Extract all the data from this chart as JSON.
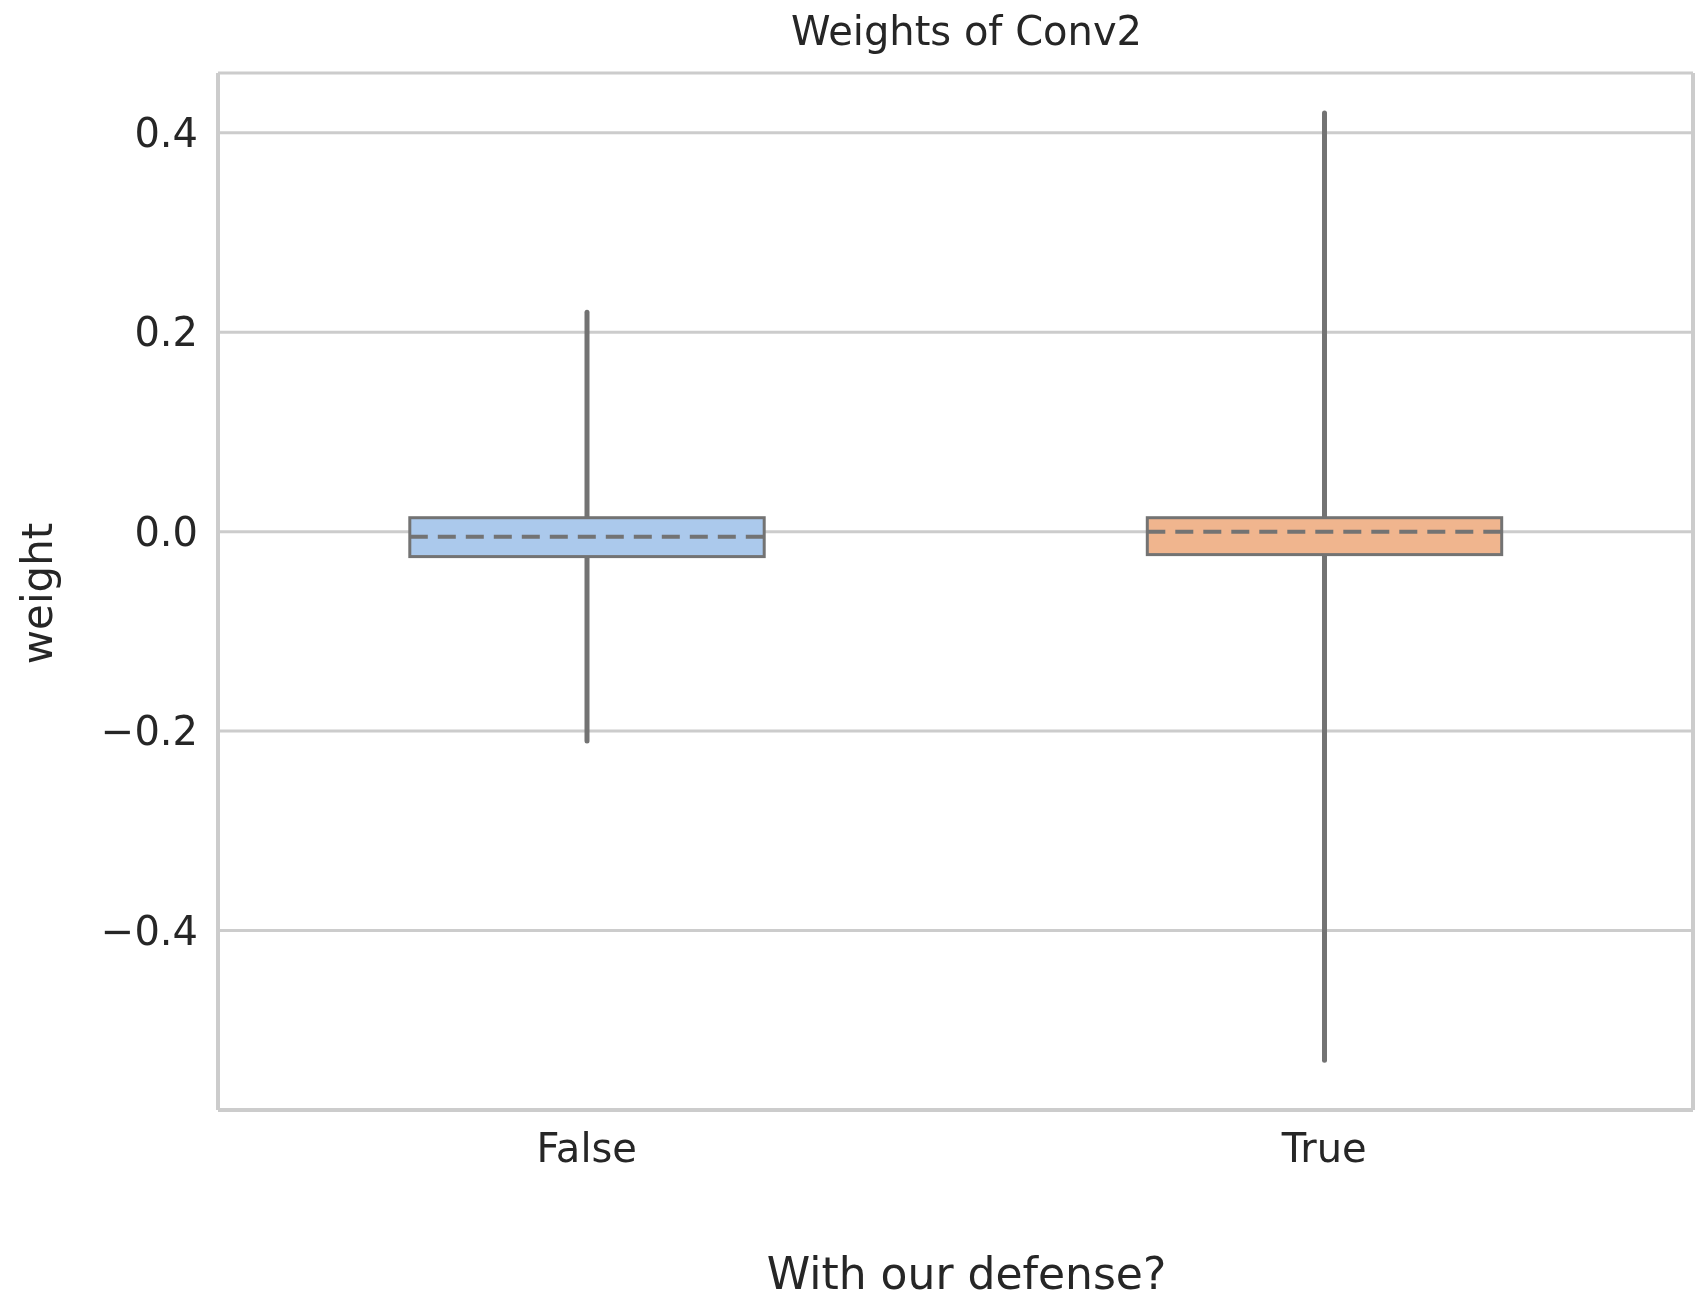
{
  "chart_data": {
    "type": "box",
    "title": "Weights of Conv2",
    "xlabel": "With our defense?",
    "ylabel": "weight",
    "categories": [
      "False",
      "True"
    ],
    "boxes": [
      {
        "low": -0.21,
        "q1": -0.025,
        "median": -0.005,
        "q3": 0.014,
        "high": 0.22
      },
      {
        "low": -0.53,
        "q1": -0.023,
        "median": 0.0,
        "q3": 0.014,
        "high": 0.42
      }
    ],
    "colors": [
      "#abc9ec",
      "#f0b58e"
    ],
    "ylim": [
      -0.58,
      0.46
    ],
    "yticks": [
      {
        "value": -0.4,
        "label": "−0.4"
      },
      {
        "value": -0.2,
        "label": "−0.2"
      },
      {
        "value": 0,
        "label": "0.0"
      },
      {
        "value": 0.2,
        "label": "0.2"
      },
      {
        "value": 0.4,
        "label": "0.4"
      }
    ],
    "grid": "y"
  }
}
